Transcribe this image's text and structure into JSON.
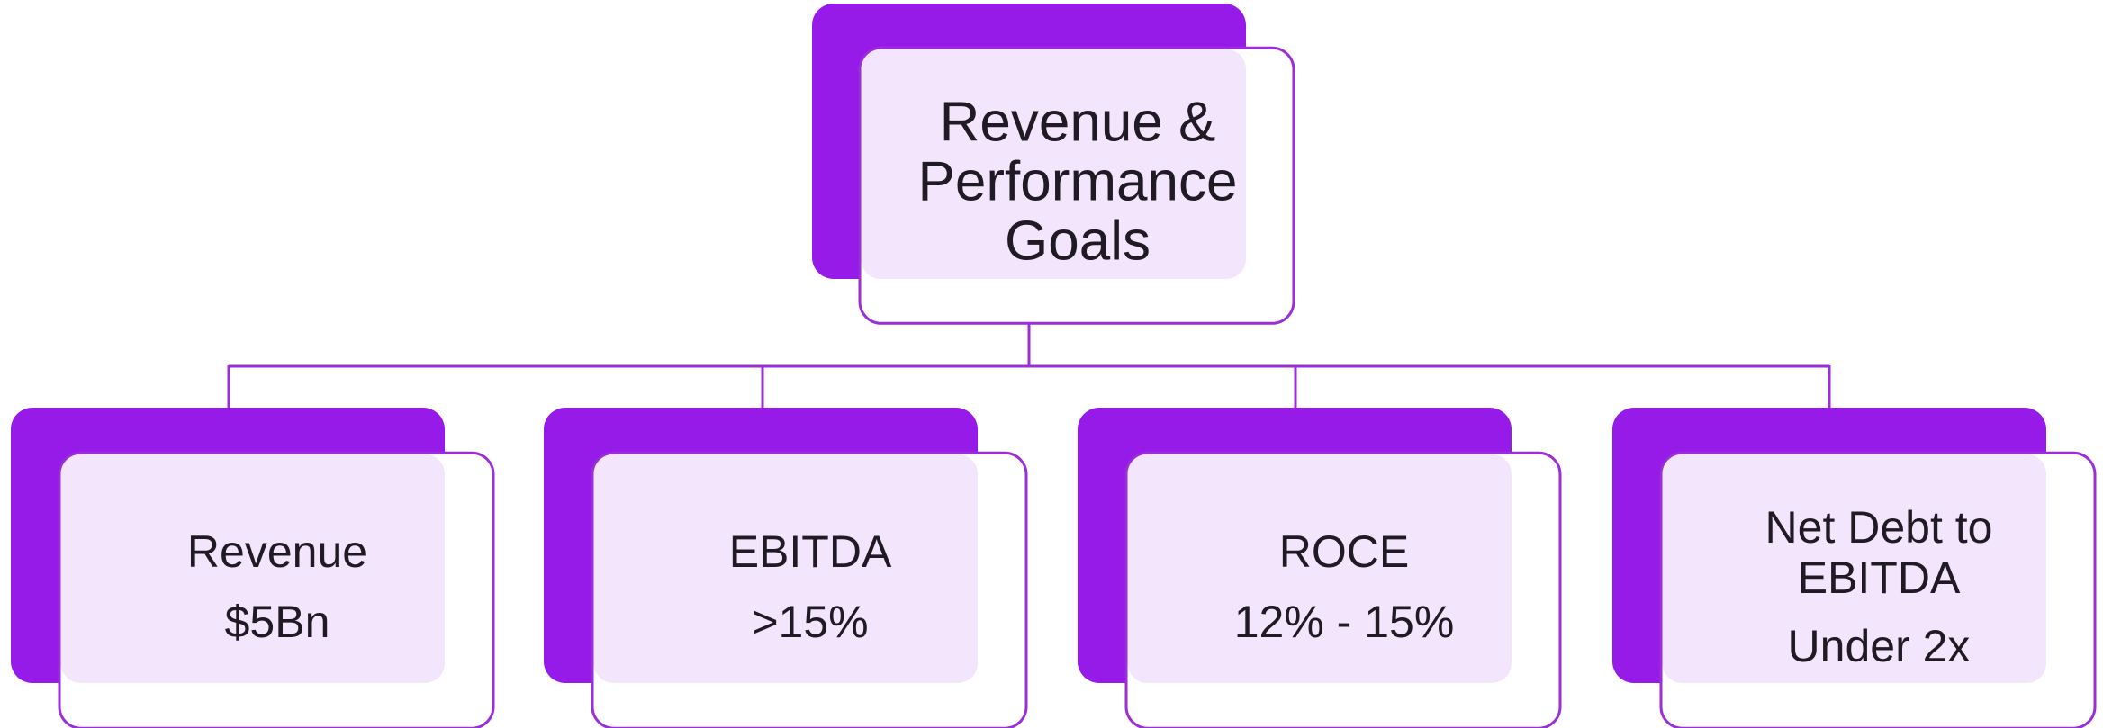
{
  "root": {
    "lines": [
      "Revenue &",
      "Performance",
      "Goals"
    ]
  },
  "nodes": [
    {
      "lines": [
        "Revenue"
      ],
      "value": "$5Bn"
    },
    {
      "lines": [
        "EBITDA"
      ],
      "value": ">15%"
    },
    {
      "lines": [
        "ROCE"
      ],
      "value": "12% - 15%"
    },
    {
      "lines": [
        "Net Debt to",
        "EBITDA"
      ],
      "value": "Under 2x"
    }
  ]
}
